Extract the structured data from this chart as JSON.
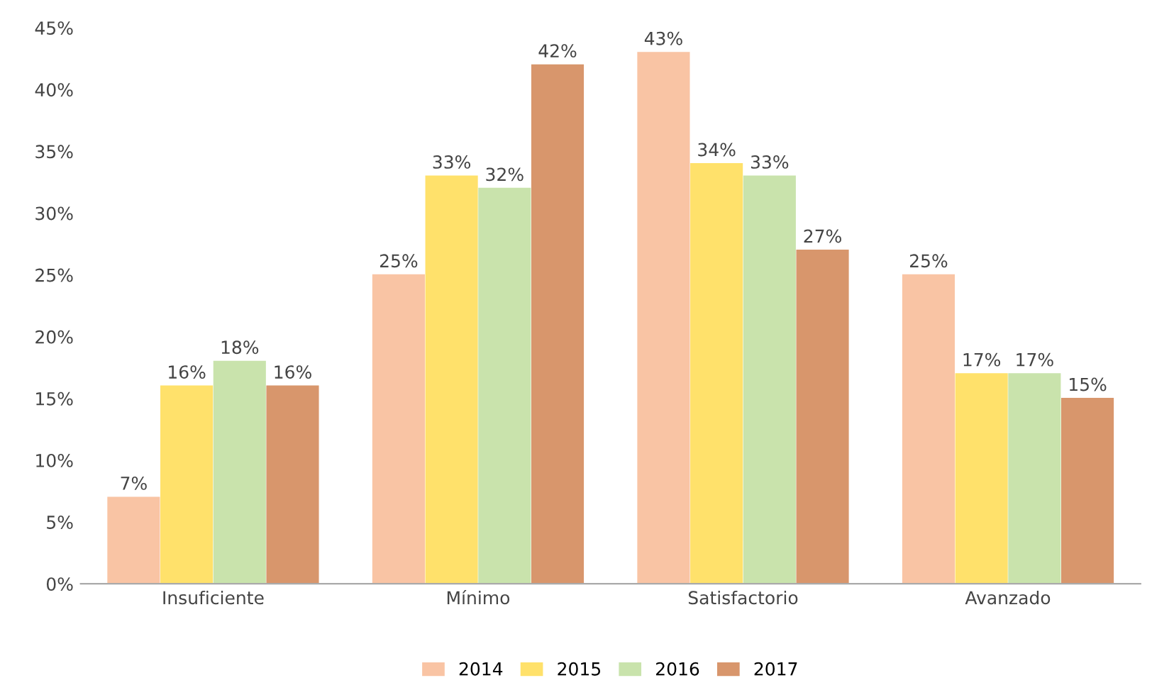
{
  "chart_data": {
    "type": "bar",
    "categories": [
      "Insuficiente",
      "Mínimo",
      "Satisfactorio",
      "Avanzado"
    ],
    "series": [
      {
        "name": "2014",
        "color": "#f9c4a4",
        "values": [
          7,
          25,
          43,
          25
        ],
        "value_labels": [
          "7%",
          "25%",
          "43%",
          "25%"
        ]
      },
      {
        "name": "2015",
        "color": "#ffe16b",
        "values": [
          16,
          33,
          34,
          17
        ],
        "value_labels": [
          "16%",
          "33%",
          "34%",
          "17%"
        ]
      },
      {
        "name": "2016",
        "color": "#c9e3ac",
        "values": [
          18,
          32,
          33,
          17
        ],
        "value_labels": [
          "18%",
          "32%",
          "33%",
          "17%"
        ]
      },
      {
        "name": "2017",
        "color": "#d8966c",
        "values": [
          16,
          42,
          27,
          15
        ],
        "value_labels": [
          "16%",
          "42%",
          "27%",
          "15%"
        ]
      }
    ],
    "ylim": [
      0,
      45
    ],
    "yticks": [
      {
        "value": 0,
        "label": "0%"
      },
      {
        "value": 5,
        "label": "5%"
      },
      {
        "value": 10,
        "label": "10%"
      },
      {
        "value": 15,
        "label": "15%"
      },
      {
        "value": 20,
        "label": "20%"
      },
      {
        "value": 25,
        "label": "25%"
      },
      {
        "value": 30,
        "label": "30%"
      },
      {
        "value": 35,
        "label": "35%"
      },
      {
        "value": 40,
        "label": "40%"
      },
      {
        "value": 45,
        "label": "45%"
      }
    ],
    "grid": false,
    "legend": "bottom"
  }
}
